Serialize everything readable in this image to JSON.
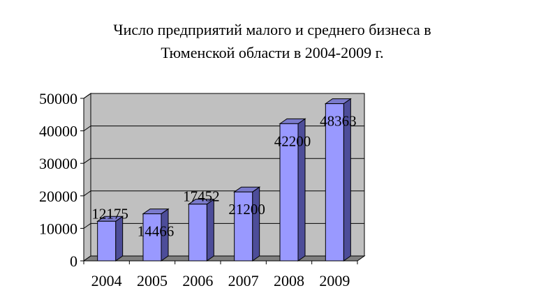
{
  "chart_data": {
    "type": "bar",
    "title_lines": [
      "Число предприятий малого и среднего бизнеса в",
      "Тюменской области  в 2004-2009 г."
    ],
    "categories": [
      "2004",
      "2005",
      "2006",
      "2007",
      "2008",
      "2009"
    ],
    "values": [
      12175,
      14466,
      17452,
      21200,
      42200,
      48363
    ],
    "data_labels": [
      "12175",
      "14466",
      "17452",
      "21200",
      "42200",
      "48363"
    ],
    "y_ticks": [
      "0",
      "10000",
      "20000",
      "30000",
      "40000",
      "50000"
    ],
    "ylim": [
      0,
      50000
    ],
    "three_d": true,
    "grid": true,
    "colors": {
      "bar_front": "#9999ff",
      "bar_side": "#4d4d99",
      "bar_top": "#7a7acc",
      "plot_back": "#c0c0c0",
      "plot_floor": "#808080",
      "gridline": "#000000"
    }
  }
}
